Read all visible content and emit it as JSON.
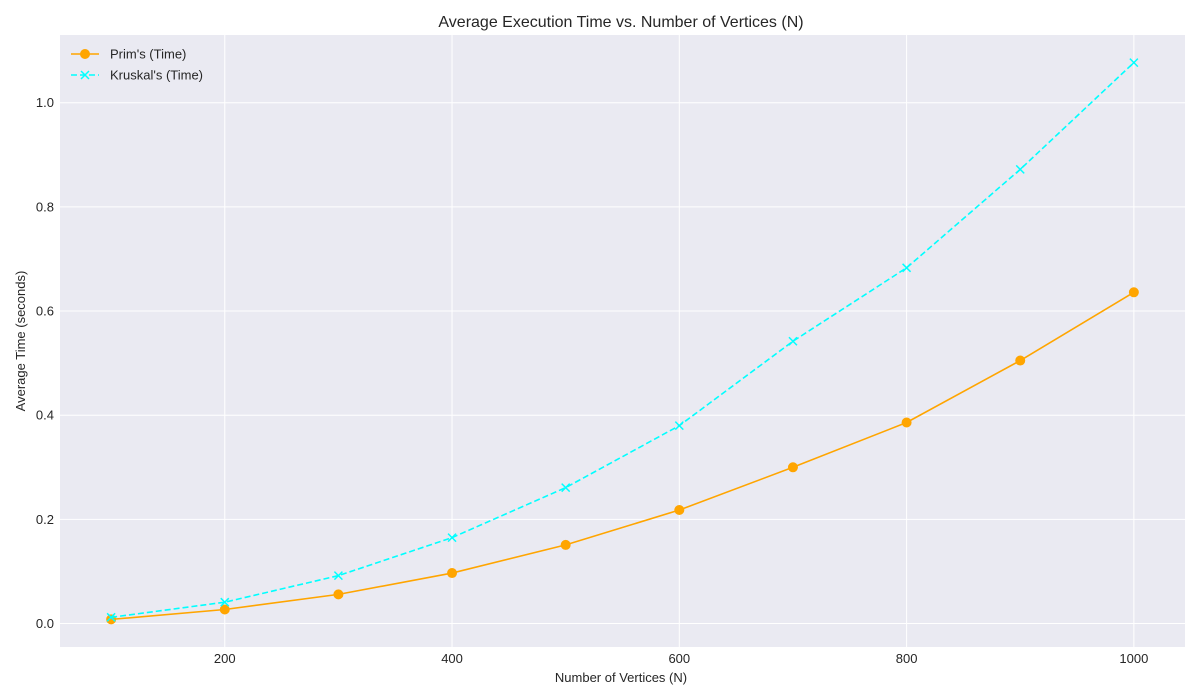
{
  "chart_data": {
    "type": "line",
    "title": "Average Execution Time vs. Number of Vertices (N)",
    "xlabel": "Number of Vertices (N)",
    "ylabel": "Average Time (seconds)",
    "x": [
      100,
      200,
      300,
      400,
      500,
      600,
      700,
      800,
      900,
      1000
    ],
    "xlim": [
      55,
      1045
    ],
    "ylim": [
      -0.045,
      1.13
    ],
    "xticks": [
      200,
      400,
      600,
      800,
      1000
    ],
    "yticks": [
      0.0,
      0.2,
      0.4,
      0.6,
      0.8,
      1.0
    ],
    "xtick_labels": [
      "200",
      "400",
      "600",
      "800",
      "1000"
    ],
    "ytick_labels": [
      "0.0",
      "0.2",
      "0.4",
      "0.6",
      "0.8",
      "1.0"
    ],
    "grid": true,
    "legend_position": "top-left",
    "series": [
      {
        "name": "Prim's (Time)",
        "color": "#FFA500",
        "marker": "circle",
        "line_style": "solid",
        "values": [
          0.008,
          0.027,
          0.056,
          0.097,
          0.151,
          0.218,
          0.3,
          0.386,
          0.505,
          0.636
        ]
      },
      {
        "name": "Kruskal's (Time)",
        "color": "#00FFFF",
        "marker": "x",
        "line_style": "dashed",
        "values": [
          0.012,
          0.041,
          0.092,
          0.165,
          0.261,
          0.38,
          0.542,
          0.683,
          0.872,
          1.077
        ]
      }
    ]
  }
}
